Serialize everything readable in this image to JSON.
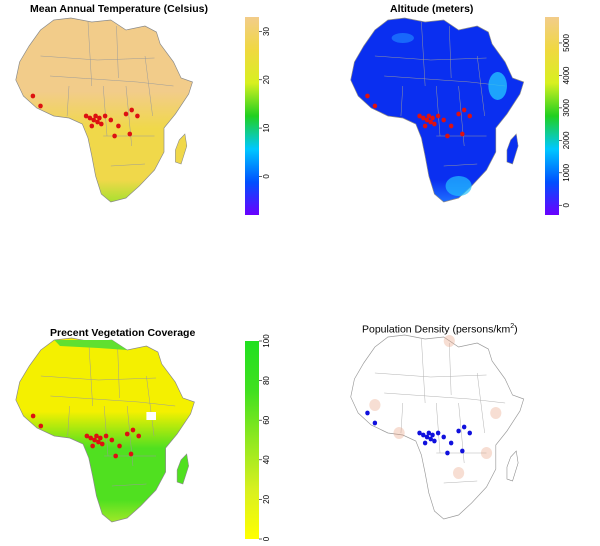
{
  "panels": [
    {
      "title": "Mean Annual Temperature (Celsius)",
      "title_sup": "",
      "title_suffix": "",
      "colorbar": {
        "ticks": [
          0,
          10,
          20,
          30
        ],
        "range": [
          -8,
          33
        ],
        "stops": [
          "#6a00ff",
          "#0050ff",
          "#00c8ff",
          "#20d020",
          "#d8f020",
          "#f0d840",
          "#f2cc8a"
        ]
      },
      "map": {
        "base_color": "#f0d84a",
        "north_color": "#f2cc8a",
        "south_color": "#a8e030"
      },
      "points_color": "#dd1111"
    },
    {
      "title": "Altitude (meters)",
      "title_sup": "",
      "title_suffix": "",
      "colorbar": {
        "ticks": [
          0,
          1000,
          2000,
          3000,
          4000,
          5000
        ],
        "range": [
          -300,
          5800
        ],
        "stops": [
          "#6a00ff",
          "#0050ff",
          "#00c8ff",
          "#20d020",
          "#d8f020",
          "#f0d840",
          "#f2cc8a"
        ]
      },
      "map": {
        "base_color": "#0a2ff0",
        "north_color": "#0a2ff0",
        "south_color": "#1e70ff"
      },
      "points_color": "#dd1111"
    },
    {
      "title": "Precent Vegetation Coverage",
      "title_sup": "",
      "title_suffix": "",
      "colorbar": {
        "ticks": [
          0,
          20,
          40,
          60,
          80,
          100
        ],
        "range": [
          0,
          100
        ],
        "stops": [
          "#ffff00",
          "#d8f020",
          "#90e820",
          "#40e020",
          "#20e020"
        ]
      },
      "map": {
        "base_color": "#50e020",
        "north_color": "#f4f000",
        "south_color": "#a0e828"
      },
      "points_color": "#dd1111"
    },
    {
      "title": "Population Density (persons/km",
      "title_sup": "2",
      "title_suffix": ")",
      "colorbar": null,
      "map": {
        "base_color": "#ffffff",
        "north_color": "#ffffff",
        "south_color": "#ffffff"
      },
      "points_color": "#1010dd"
    }
  ]
}
